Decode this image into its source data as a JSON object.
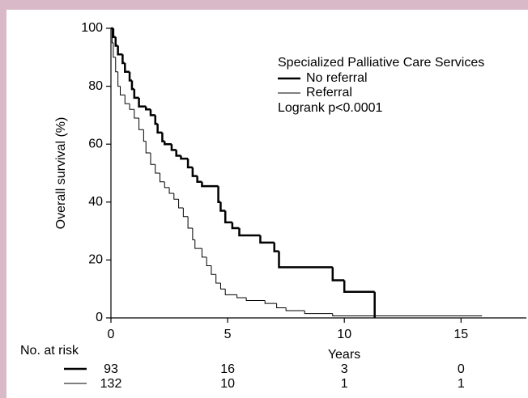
{
  "chart_data": {
    "type": "line",
    "drawstyle": "steps-post",
    "ylabel": "Overall survival (%)",
    "xlabel": "Years",
    "legend_title": "Specialized Palliative Care Services",
    "annotation": "Logrank p<0.0001",
    "at_risk_label": "No. at risk",
    "xlim": [
      0,
      17.8
    ],
    "xticks": [
      0,
      5,
      10,
      15
    ],
    "ylim": [
      0,
      100
    ],
    "yticks": [
      0,
      20,
      40,
      60,
      80,
      100
    ],
    "legend": "upper right",
    "series": [
      {
        "name": "No referral",
        "color": "#000000",
        "linewidth": 2.5,
        "x": [
          0,
          0.1,
          0.2,
          0.3,
          0.5,
          0.6,
          0.8,
          0.9,
          1.0,
          1.2,
          1.5,
          1.7,
          1.9,
          2.0,
          2.2,
          2.3,
          2.6,
          2.8,
          3.0,
          3.3,
          3.5,
          3.7,
          3.9,
          4.6,
          4.7,
          4.9,
          5.2,
          5.5,
          6.4,
          7.0,
          7.2,
          9.5,
          10.0,
          11.3
        ],
        "values": [
          100,
          97,
          94,
          91,
          88,
          85,
          82,
          79,
          76,
          73,
          72,
          70,
          67,
          64,
          61,
          60,
          58,
          56,
          55,
          52,
          49,
          47,
          45.5,
          40,
          37,
          33,
          31,
          28.5,
          26,
          23,
          17.5,
          13,
          9,
          0
        ],
        "at_risk": [
          93,
          16,
          3,
          0
        ]
      },
      {
        "name": "Referral",
        "color": "#000000",
        "linewidth": 1,
        "x": [
          0,
          0.05,
          0.1,
          0.2,
          0.3,
          0.4,
          0.6,
          0.8,
          1.0,
          1.2,
          1.4,
          1.5,
          1.7,
          1.9,
          2.1,
          2.3,
          2.5,
          2.7,
          2.9,
          3.1,
          3.3,
          3.5,
          3.6,
          3.9,
          4.1,
          4.3,
          4.5,
          4.7,
          4.9,
          5.4,
          5.8,
          6.6,
          7.1,
          7.5,
          8.3,
          9.5,
          15.9
        ],
        "values": [
          100,
          95,
          90,
          85,
          80,
          77,
          74,
          72,
          69,
          65,
          61,
          57,
          53,
          50,
          47,
          45,
          43,
          41,
          38,
          35,
          31,
          27,
          24,
          21,
          18,
          15,
          12,
          10,
          8,
          7,
          6,
          5,
          3.5,
          2.5,
          1.5,
          0.7,
          0.7
        ],
        "at_risk": [
          132,
          10,
          1,
          1
        ]
      }
    ]
  }
}
